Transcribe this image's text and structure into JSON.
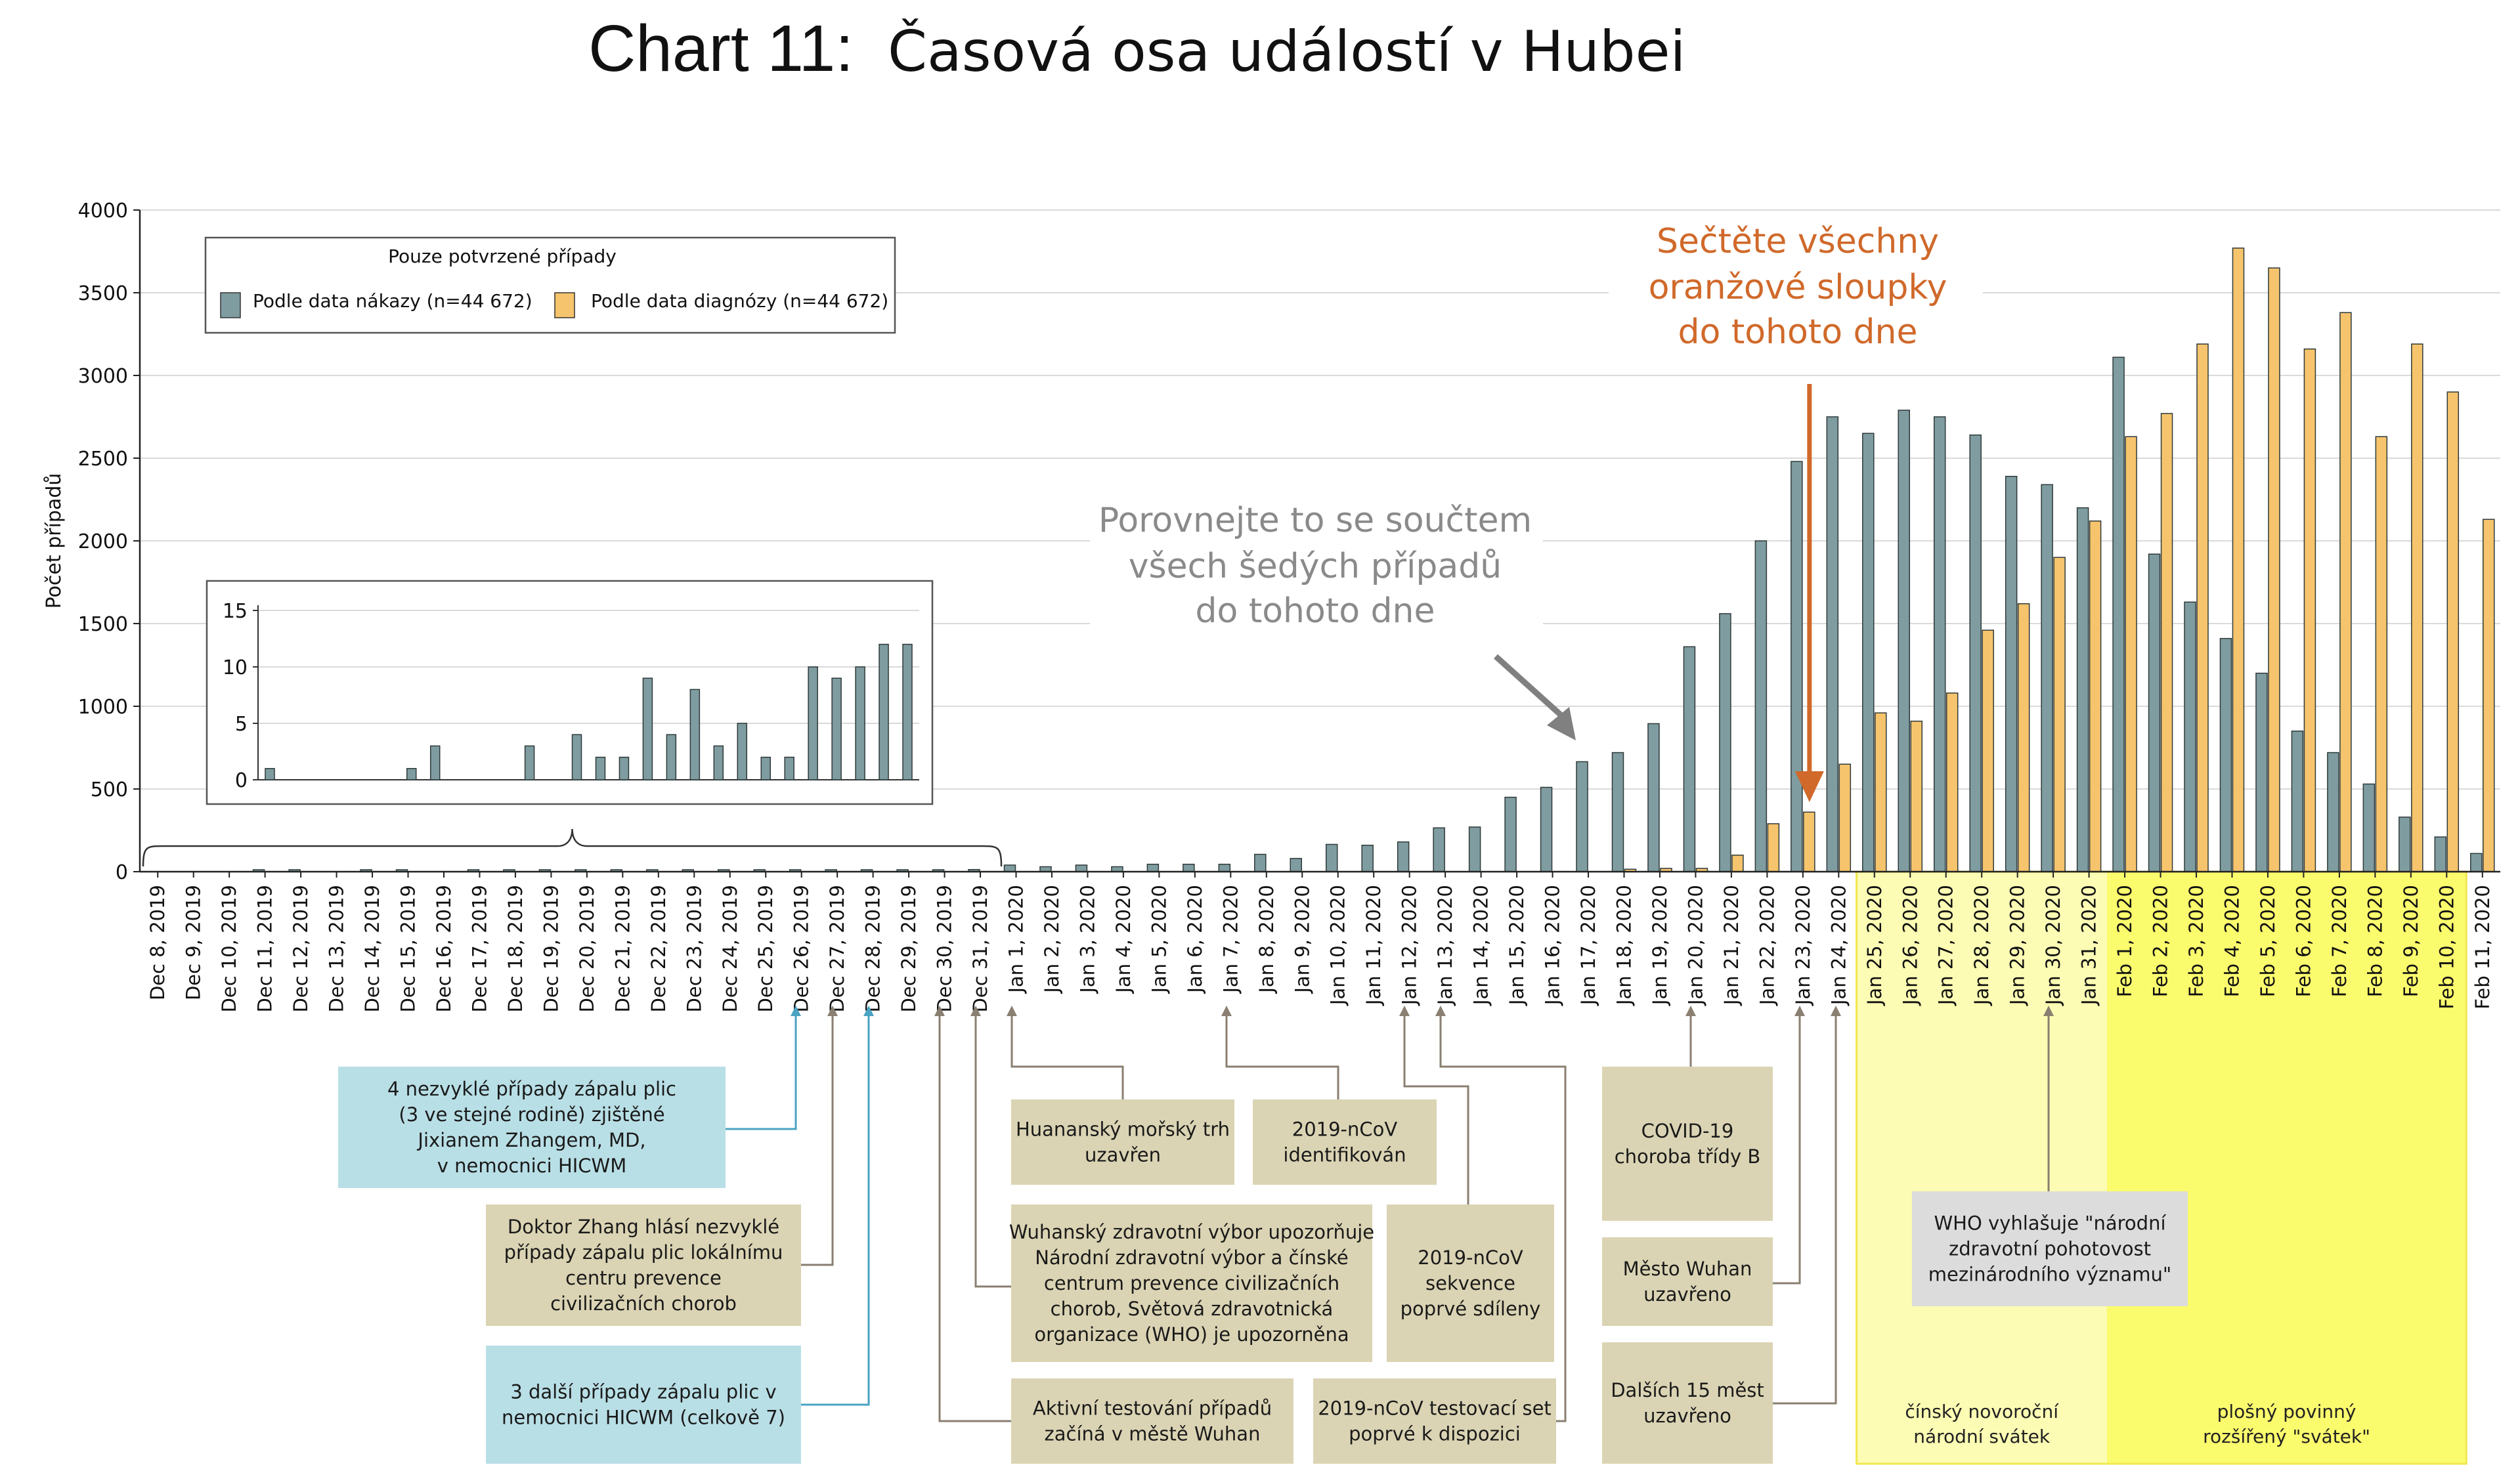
{
  "chart_data": {
    "type": "bar",
    "title_prefix": "Chart 11:",
    "title": "Časová osa událostí v Hubei",
    "ylabel": "Počet případů",
    "ylim": [
      0,
      4000
    ],
    "yticks": [
      0,
      500,
      1000,
      1500,
      2000,
      2500,
      3000,
      3500,
      4000
    ],
    "grid": true,
    "legend": {
      "title": "Pouze potvrzené případy",
      "placement": "top-left",
      "entries": [
        "Podle data nákazy (n=44 672)",
        "Podle data diagnózy (n=44 672)"
      ]
    },
    "categories": [
      "Dec 8, 2019",
      "Dec 9, 2019",
      "Dec 10, 2019",
      "Dec 11, 2019",
      "Dec 12, 2019",
      "Dec 13, 2019",
      "Dec 14, 2019",
      "Dec 15, 2019",
      "Dec 16, 2019",
      "Dec 17, 2019",
      "Dec 18, 2019",
      "Dec 19, 2019",
      "Dec 20, 2019",
      "Dec 21, 2019",
      "Dec 22, 2019",
      "Dec 23, 2019",
      "Dec 24, 2019",
      "Dec 25, 2019",
      "Dec 26, 2019",
      "Dec 27, 2019",
      "Dec 28, 2019",
      "Dec 29, 2019",
      "Dec 30, 2019",
      "Dec 31, 2019",
      "Jan 1, 2020",
      "Jan 2, 2020",
      "Jan 3, 2020",
      "Jan 4, 2020",
      "Jan 5, 2020",
      "Jan 6, 2020",
      "Jan 7, 2020",
      "Jan 8, 2020",
      "Jan 9, 2020",
      "Jan 10, 2020",
      "Jan 11, 2020",
      "Jan 12, 2020",
      "Jan 13, 2020",
      "Jan 14, 2020",
      "Jan 15, 2020",
      "Jan 16, 2020",
      "Jan 17, 2020",
      "Jan 18, 2020",
      "Jan 19, 2020",
      "Jan 20, 2020",
      "Jan 21, 2020",
      "Jan 22, 2020",
      "Jan 23, 2020",
      "Jan 24, 2020",
      "Jan 25, 2020",
      "Jan 26, 2020",
      "Jan 27, 2020",
      "Jan 28, 2020",
      "Jan 29, 2020",
      "Jan 30, 2020",
      "Jan 31, 2020",
      "Feb 1, 2020",
      "Feb 2, 2020",
      "Feb 3, 2020",
      "Feb 4, 2020",
      "Feb 5, 2020",
      "Feb 6, 2020",
      "Feb 7, 2020",
      "Feb 8, 2020",
      "Feb 9, 2020",
      "Feb 10, 2020",
      "Feb 11, 2020"
    ],
    "series": [
      {
        "name": "Podle data nákazy (n=44 672)",
        "color": "#7f9ca0",
        "values": [
          0,
          0,
          0,
          1,
          1,
          0,
          2,
          1,
          0,
          2,
          2,
          3,
          3,
          9,
          3,
          8,
          2,
          5,
          3,
          3,
          11,
          9,
          11,
          13,
          40,
          30,
          40,
          30,
          45,
          45,
          45,
          105,
          80,
          165,
          160,
          180,
          265,
          270,
          450,
          510,
          665,
          720,
          895,
          1360,
          1560,
          2000,
          2480,
          2750,
          2650,
          2790,
          2750,
          2640,
          2390,
          2340,
          2200,
          3110,
          1920,
          1630,
          1410,
          1200,
          850,
          720,
          530,
          330,
          210,
          110
        ]
      },
      {
        "name": "Podle data diagnózy (n=44 672)",
        "color": "#f6c46d",
        "values": [
          0,
          0,
          0,
          0,
          0,
          0,
          0,
          0,
          0,
          0,
          0,
          0,
          0,
          0,
          0,
          0,
          0,
          0,
          0,
          0,
          0,
          0,
          0,
          0,
          0,
          0,
          0,
          0,
          0,
          0,
          0,
          0,
          0,
          0,
          0,
          0,
          0,
          0,
          0,
          0,
          0,
          15,
          20,
          20,
          100,
          290,
          360,
          650,
          960,
          910,
          1080,
          1460,
          1620,
          1900,
          2120,
          2630,
          2770,
          3190,
          3770,
          3650,
          3160,
          3380,
          2630,
          3190,
          2900,
          2130
        ]
      }
    ],
    "inset": {
      "ylim": [
        0,
        15
      ],
      "yticks": [
        0,
        5,
        10,
        15
      ],
      "values": [
        1,
        0,
        0,
        0,
        0,
        0,
        1,
        3,
        0,
        0,
        0,
        3,
        0,
        4,
        2,
        2,
        9,
        4,
        8,
        3,
        5,
        2,
        2,
        10,
        9,
        10,
        12,
        12
      ]
    },
    "annotations": {
      "orange_note": [
        "Sečtěte všechny",
        "oranžové sloupky",
        "do tohoto dne"
      ],
      "gray_note": [
        "Porovnejte to se součtem",
        "všech šedých případů",
        "do tohoto dne"
      ]
    },
    "holiday_labels": [
      [
        "čínský novoroční",
        "národní svátek"
      ],
      [
        "plošný povinný",
        "rozšířený \"svátek\""
      ]
    ],
    "events": [
      {
        "lines": [
          "4 nezvyklé případy zápalu plic",
          "(3 ve stejné rodině) zjištěné",
          "Jixianem Zhangem, MD,",
          "v nemocnici HICWM"
        ],
        "date": "Dec 26, 2019",
        "color": "#b9dfe6"
      },
      {
        "lines": [
          "Doktor Zhang hlásí nezvyklé",
          "případy zápalu plic lokálnímu",
          "centru prevence",
          "civilizačních chorob"
        ],
        "date": "Dec 27, 2019",
        "color": "#dbd4b4"
      },
      {
        "lines": [
          "3 další případy zápalu plic v",
          "nemocnici HICWM (celkově 7)"
        ],
        "date": "Dec 28, 2019",
        "color": "#b9dfe6"
      },
      {
        "lines": [
          "Huananský mořský trh",
          "uzavřen"
        ],
        "date": "Jan 1, 2020",
        "color": "#dbd4b4"
      },
      {
        "lines": [
          "2019-nCoV",
          "identifikován"
        ],
        "date": "Jan 7, 2020",
        "color": "#dbd4b4"
      },
      {
        "lines": [
          "Wuhanský zdravotní výbor upozorňuje",
          "Národní zdravotní výbor a čínské",
          "centrum prevence civilizačních",
          "chorob, Světová zdravotnická",
          "organizace (WHO) je upozorněna"
        ],
        "date": "Dec 31, 2019",
        "color": "#dbd4b4"
      },
      {
        "lines": [
          "2019-nCoV",
          "sekvence",
          "poprvé sdíleny"
        ],
        "date": "Jan 12, 2020",
        "color": "#dbd4b4"
      },
      {
        "lines": [
          "Aktivní testování případů",
          "začíná v městě Wuhan"
        ],
        "date": "Dec 30, 2019",
        "color": "#dbd4b4"
      },
      {
        "lines": [
          "2019-nCoV testovací set",
          "poprvé k dispozici"
        ],
        "date": "Jan 13, 2020",
        "color": "#dbd4b4"
      },
      {
        "lines": [
          "COVID-19",
          "choroba třídy B"
        ],
        "date": "Jan 20, 2020",
        "color": "#dbd4b4"
      },
      {
        "lines": [
          "Město Wuhan",
          "uzavřeno"
        ],
        "date": "Jan 23, 2020",
        "color": "#dbd4b4"
      },
      {
        "lines": [
          "Dalších 15 měst",
          "uzavřeno"
        ],
        "date": "Jan 24, 2020",
        "color": "#dbd4b4"
      },
      {
        "lines": [
          "WHO vyhlašuje \"národní",
          "zdravotní pohotovost",
          "mezinárodního významu\""
        ],
        "date": "Jan 30, 2020",
        "color": "#dcdcdc"
      }
    ]
  }
}
